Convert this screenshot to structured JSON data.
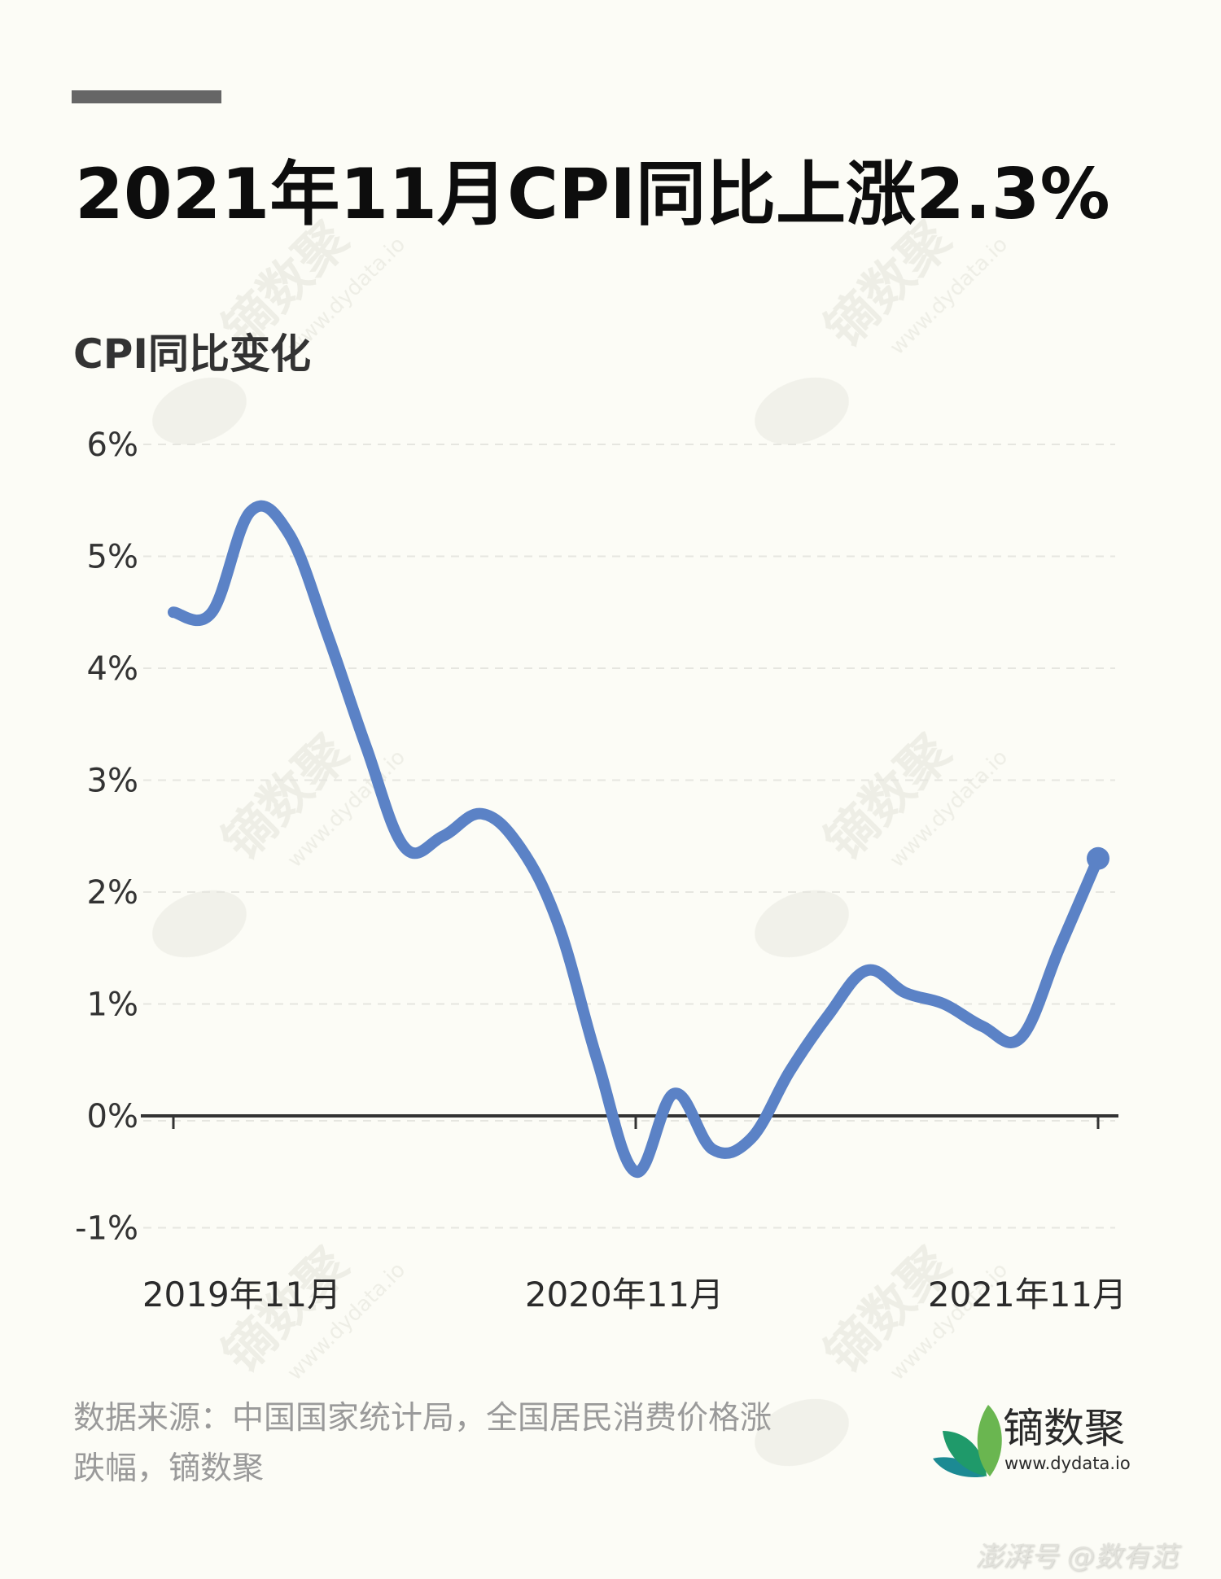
{
  "header": {
    "title": "2021年11月CPI同比上涨2.3%",
    "subtitle": "CPI同比变化"
  },
  "footer": {
    "source_line1": "数据来源：中国国家统计局，全国居民消费价格涨",
    "source_line2": "跌幅，镝数聚",
    "logo_name": "镝数聚",
    "logo_url": "www.dydata.io",
    "corner_watermark": "澎湃号 @数有范"
  },
  "watermark": {
    "text": "镝数聚",
    "url": "www.dydata.io"
  },
  "colors": {
    "line": "#5b82c6",
    "axis": "#333333",
    "grid": "#e6e6e0",
    "background": "#fcfcf6",
    "logo_leaf_light": "#6ab650",
    "logo_leaf_mid": "#1f9a6a",
    "logo_leaf_dark": "#1c8a93"
  },
  "chart_data": {
    "type": "line",
    "title": "2021年11月CPI同比上涨2.3%",
    "subtitle": "CPI同比变化",
    "xlabel": "",
    "ylabel": "",
    "x": [
      "2019-11",
      "2019-12",
      "2020-01",
      "2020-02",
      "2020-03",
      "2020-04",
      "2020-05",
      "2020-06",
      "2020-07",
      "2020-08",
      "2020-09",
      "2020-10",
      "2020-11",
      "2020-12",
      "2021-01",
      "2021-02",
      "2021-03",
      "2021-04",
      "2021-05",
      "2021-06",
      "2021-07",
      "2021-08",
      "2021-09",
      "2021-10",
      "2021-11"
    ],
    "series": [
      {
        "name": "CPI同比",
        "values": [
          4.5,
          4.5,
          5.4,
          5.2,
          4.3,
          3.3,
          2.4,
          2.5,
          2.7,
          2.4,
          1.7,
          0.5,
          -0.5,
          0.2,
          -0.3,
          -0.2,
          0.4,
          0.9,
          1.3,
          1.1,
          1.0,
          0.8,
          0.7,
          1.5,
          2.3
        ]
      }
    ],
    "x_tick_labels": [
      "2019年11月",
      "2020年11月",
      "2021年11月"
    ],
    "x_tick_indices": [
      0,
      12,
      24
    ],
    "y_tick_labels": [
      "6%",
      "5%",
      "4%",
      "3%",
      "2%",
      "1%",
      "0%",
      "-1%"
    ],
    "y_ticks": [
      6,
      5,
      4,
      3,
      2,
      1,
      0,
      -1
    ],
    "ylim": [
      -1,
      6
    ],
    "grid": "horizontal dashed",
    "legend": "none",
    "end_marker": {
      "x": "2021-11",
      "y": 2.3
    }
  }
}
